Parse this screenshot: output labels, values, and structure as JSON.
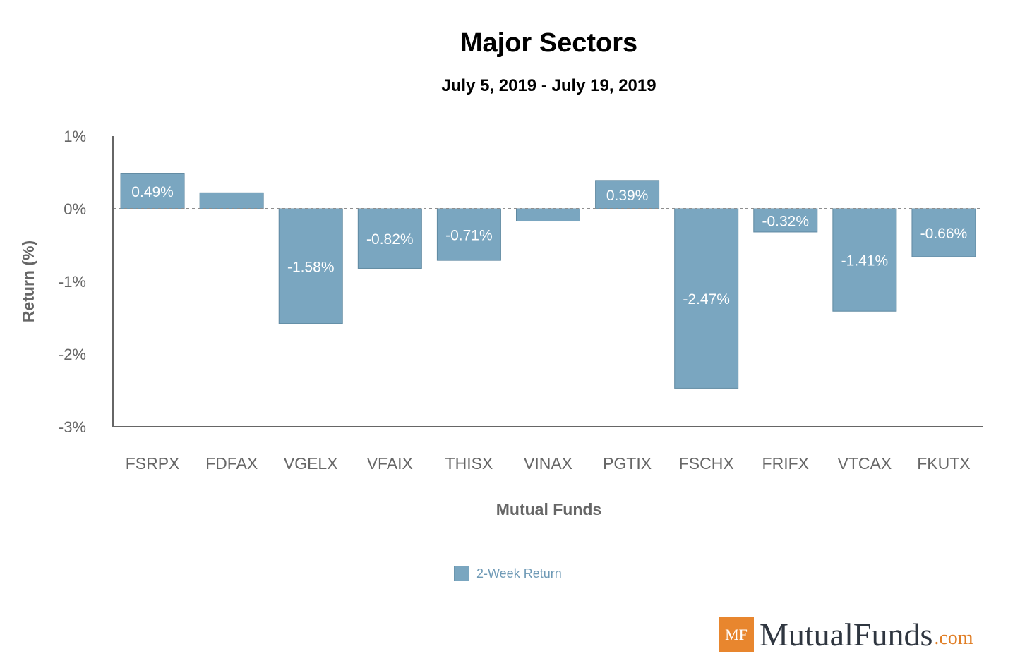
{
  "chart_data": {
    "type": "bar",
    "title": "Major Sectors",
    "subtitle": "July 5, 2019 - July 19, 2019",
    "xlabel": "Mutual Funds",
    "ylabel": "Return (%)",
    "ylim": [
      -3,
      1
    ],
    "yticks": [
      1,
      0,
      -1,
      -2,
      -3
    ],
    "ytick_labels": [
      "1%",
      "0%",
      "-1%",
      "-2%",
      "-3%"
    ],
    "categories": [
      "FSRPX",
      "FDFAX",
      "VGELX",
      "VFAIX",
      "THISX",
      "VINAX",
      "PGTIX",
      "FSCHX",
      "FRIFX",
      "VTCAX",
      "FKUTX"
    ],
    "series": [
      {
        "name": "2-Week Return",
        "color": "#7aa6c0",
        "values": [
          0.49,
          0.22,
          -1.58,
          -0.82,
          -0.71,
          -0.17,
          0.39,
          -2.47,
          -0.32,
          -1.41,
          -0.66
        ],
        "data_labels": [
          "0.49%",
          "",
          "-1.58%",
          "-0.82%",
          "-0.71%",
          "",
          "0.39%",
          "-2.47%",
          "-0.32%",
          "-1.41%",
          "-0.66%"
        ]
      }
    ],
    "legend": "bottom-center"
  },
  "branding": {
    "logo_mark": "MF",
    "logo_name": "MutualFunds",
    "logo_tld": ".com"
  }
}
